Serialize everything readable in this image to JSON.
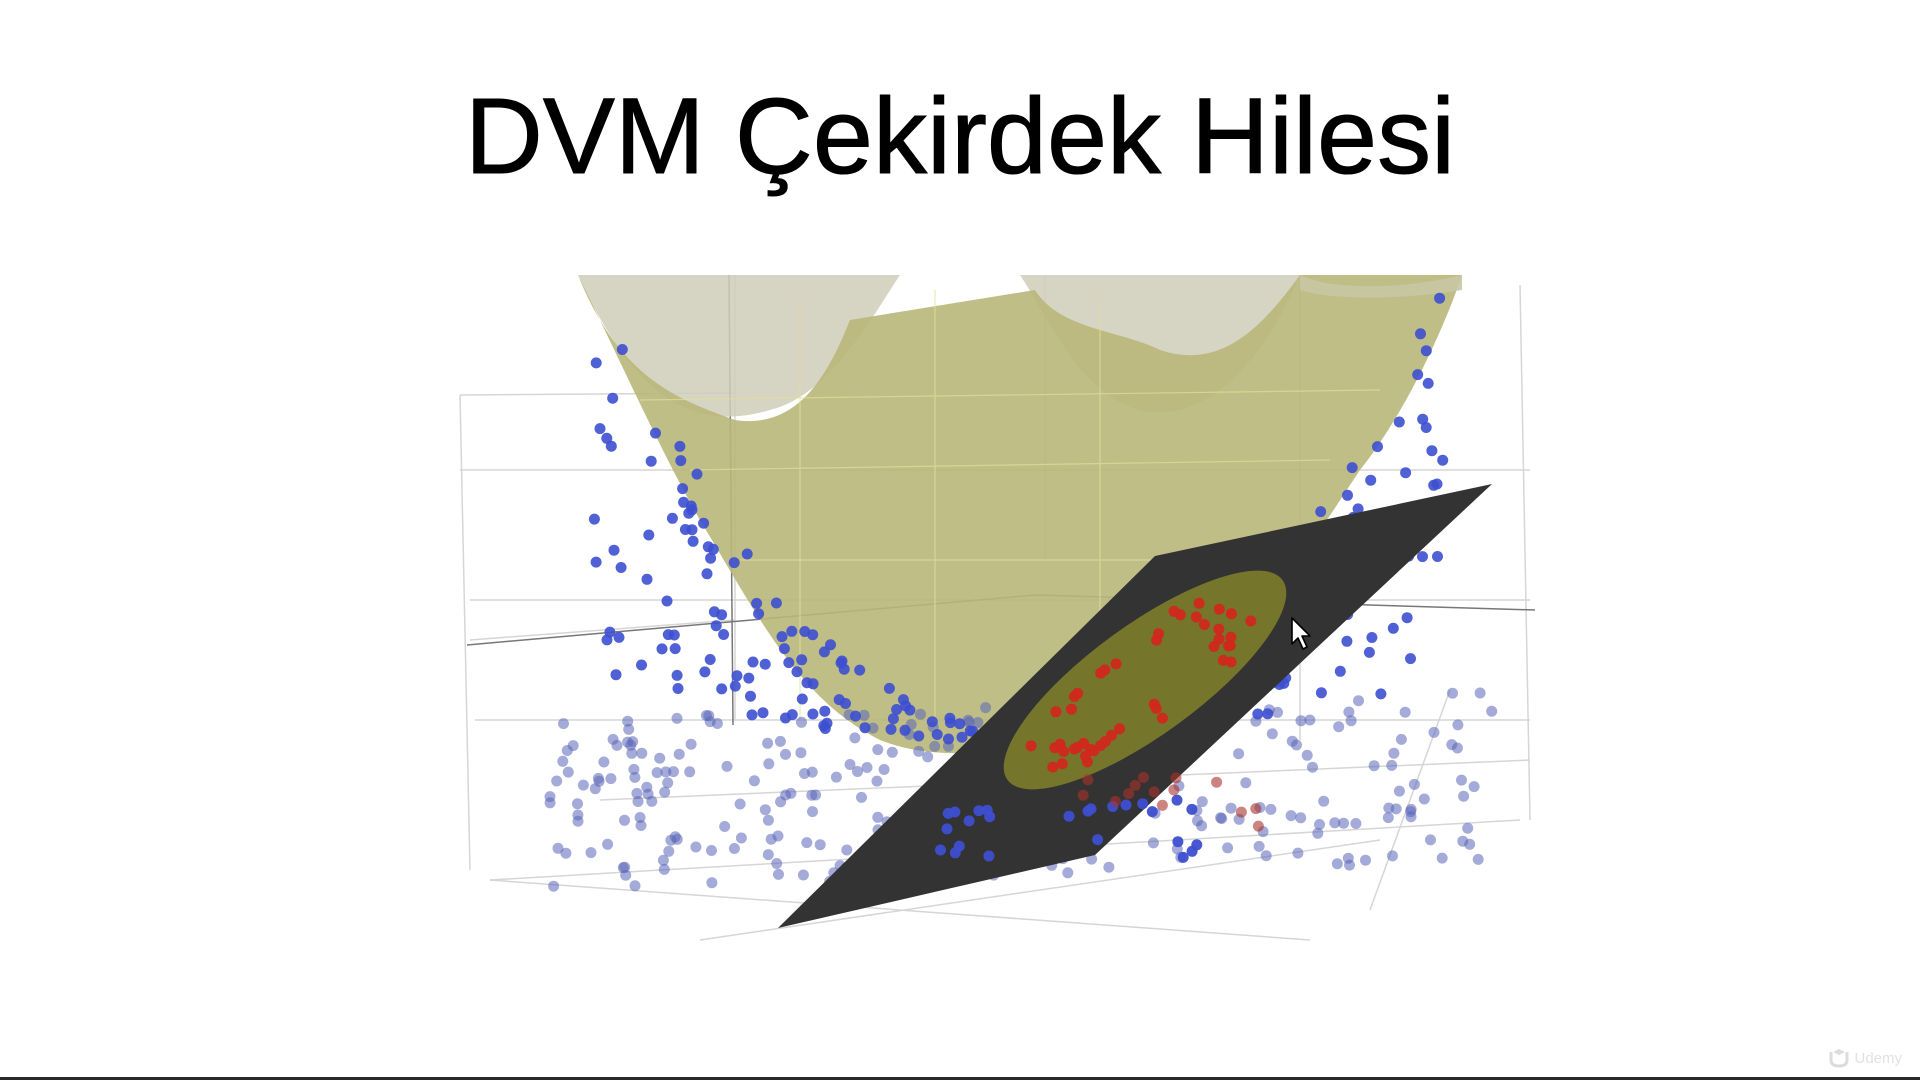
{
  "slide": {
    "title": "DVM Çekirdek Hilesi"
  },
  "watermark": {
    "text": "Udemy"
  },
  "colors": {
    "background": "#ffffff",
    "surface_fill": "#b9b77a",
    "surface_back": "#cfcdb8",
    "plane_fill": "#333333",
    "ellipse_fill": "#8c8c2a",
    "blue_points": "#3d4fd0",
    "red_points": "#d0281e",
    "grid": "#d9d9d9"
  },
  "icons": {
    "cursor": "mouse-cursor-icon",
    "watermark": "udemy-logo-icon"
  }
}
